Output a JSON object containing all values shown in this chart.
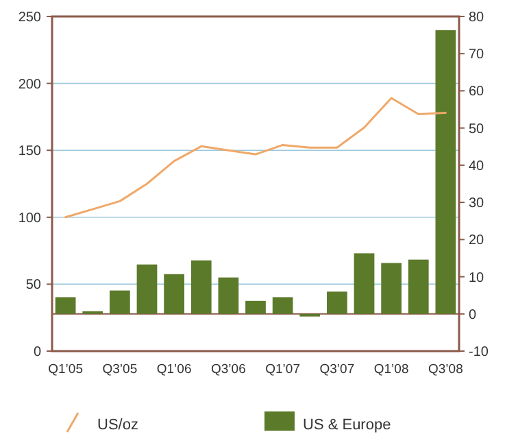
{
  "chart_data": {
    "type": "bar",
    "categories": [
      "Q1’05",
      null,
      "Q3’05",
      null,
      "Q1’06",
      null,
      "Q3’06",
      null,
      "Q1’07",
      null,
      "Q3’07",
      null,
      "Q1’08",
      null,
      "Q3’08"
    ],
    "series": [
      {
        "name": "US/oz",
        "type": "line",
        "color": "#f0a868",
        "values": [
          100,
          106,
          112,
          125,
          142,
          153,
          150,
          147,
          154,
          152,
          152,
          167,
          189,
          177,
          178
        ]
      },
      {
        "name": "US & Europe",
        "axis": "y2",
        "color": "#5b7a2a",
        "values": [
          4.5,
          0.7,
          6.3,
          13.3,
          10.7,
          14.4,
          9.8,
          3.5,
          4.5,
          -0.7,
          6,
          16.3,
          13.7,
          14.6,
          76.3
        ]
      }
    ],
    "ylim": [
      0,
      250
    ],
    "yticks": [
      0,
      50,
      100,
      150,
      200,
      250
    ],
    "y2lim": [
      -10,
      80
    ],
    "y2ticks": [
      -10,
      0,
      10,
      20,
      30,
      40,
      50,
      60,
      70,
      80
    ],
    "ref_lines": [
      {
        "axis": "y2",
        "value": 0,
        "color": "#8b5a4a"
      }
    ],
    "grid": "y",
    "legend": "bottom",
    "marker": "none",
    "line_style": "solid"
  }
}
